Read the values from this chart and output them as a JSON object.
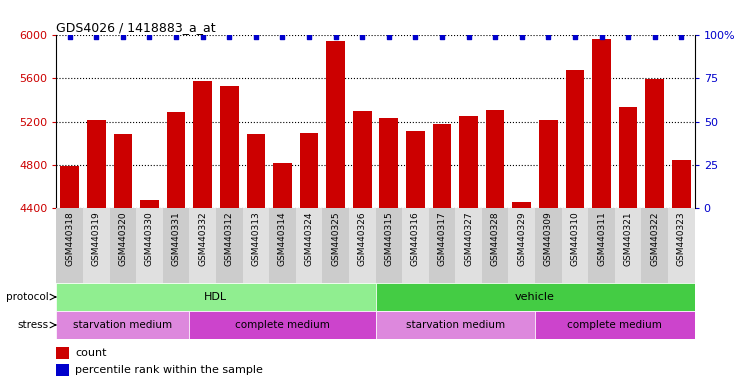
{
  "title": "GDS4026 / 1418883_a_at",
  "samples": [
    "GSM440318",
    "GSM440319",
    "GSM440320",
    "GSM440330",
    "GSM440331",
    "GSM440332",
    "GSM440312",
    "GSM440313",
    "GSM440314",
    "GSM440324",
    "GSM440325",
    "GSM440326",
    "GSM440315",
    "GSM440316",
    "GSM440317",
    "GSM440327",
    "GSM440328",
    "GSM440329",
    "GSM440309",
    "GSM440310",
    "GSM440311",
    "GSM440321",
    "GSM440322",
    "GSM440323"
  ],
  "counts": [
    4790,
    5210,
    5080,
    4470,
    5290,
    5570,
    5530,
    5080,
    4820,
    5090,
    5940,
    5300,
    5230,
    5110,
    5180,
    5250,
    5310,
    4460,
    5210,
    5680,
    5960,
    5330,
    5590,
    4840
  ],
  "ylim_left": [
    4400,
    6000
  ],
  "yticks_left": [
    4400,
    4800,
    5200,
    5600,
    6000
  ],
  "ylim_right": [
    0,
    100
  ],
  "yticks_right": [
    0,
    25,
    50,
    75,
    100
  ],
  "bar_color": "#cc0000",
  "dot_color": "#0000cc",
  "protocol_hdl_color": "#90ee90",
  "protocol_vehicle_color": "#44cc44",
  "stress_starv_color": "#dd88dd",
  "stress_comp_color": "#cc44cc",
  "protocol_label": "protocol",
  "stress_label": "stress",
  "hdl_label": "HDL",
  "vehicle_label": "vehicle",
  "starv_label": "starvation medium",
  "comp_label": "complete medium",
  "legend_count": "count",
  "legend_pct": "percentile rank within the sample",
  "hdl_count": 12,
  "starv1_count": 5,
  "starv2_count": 6,
  "n_total": 24
}
